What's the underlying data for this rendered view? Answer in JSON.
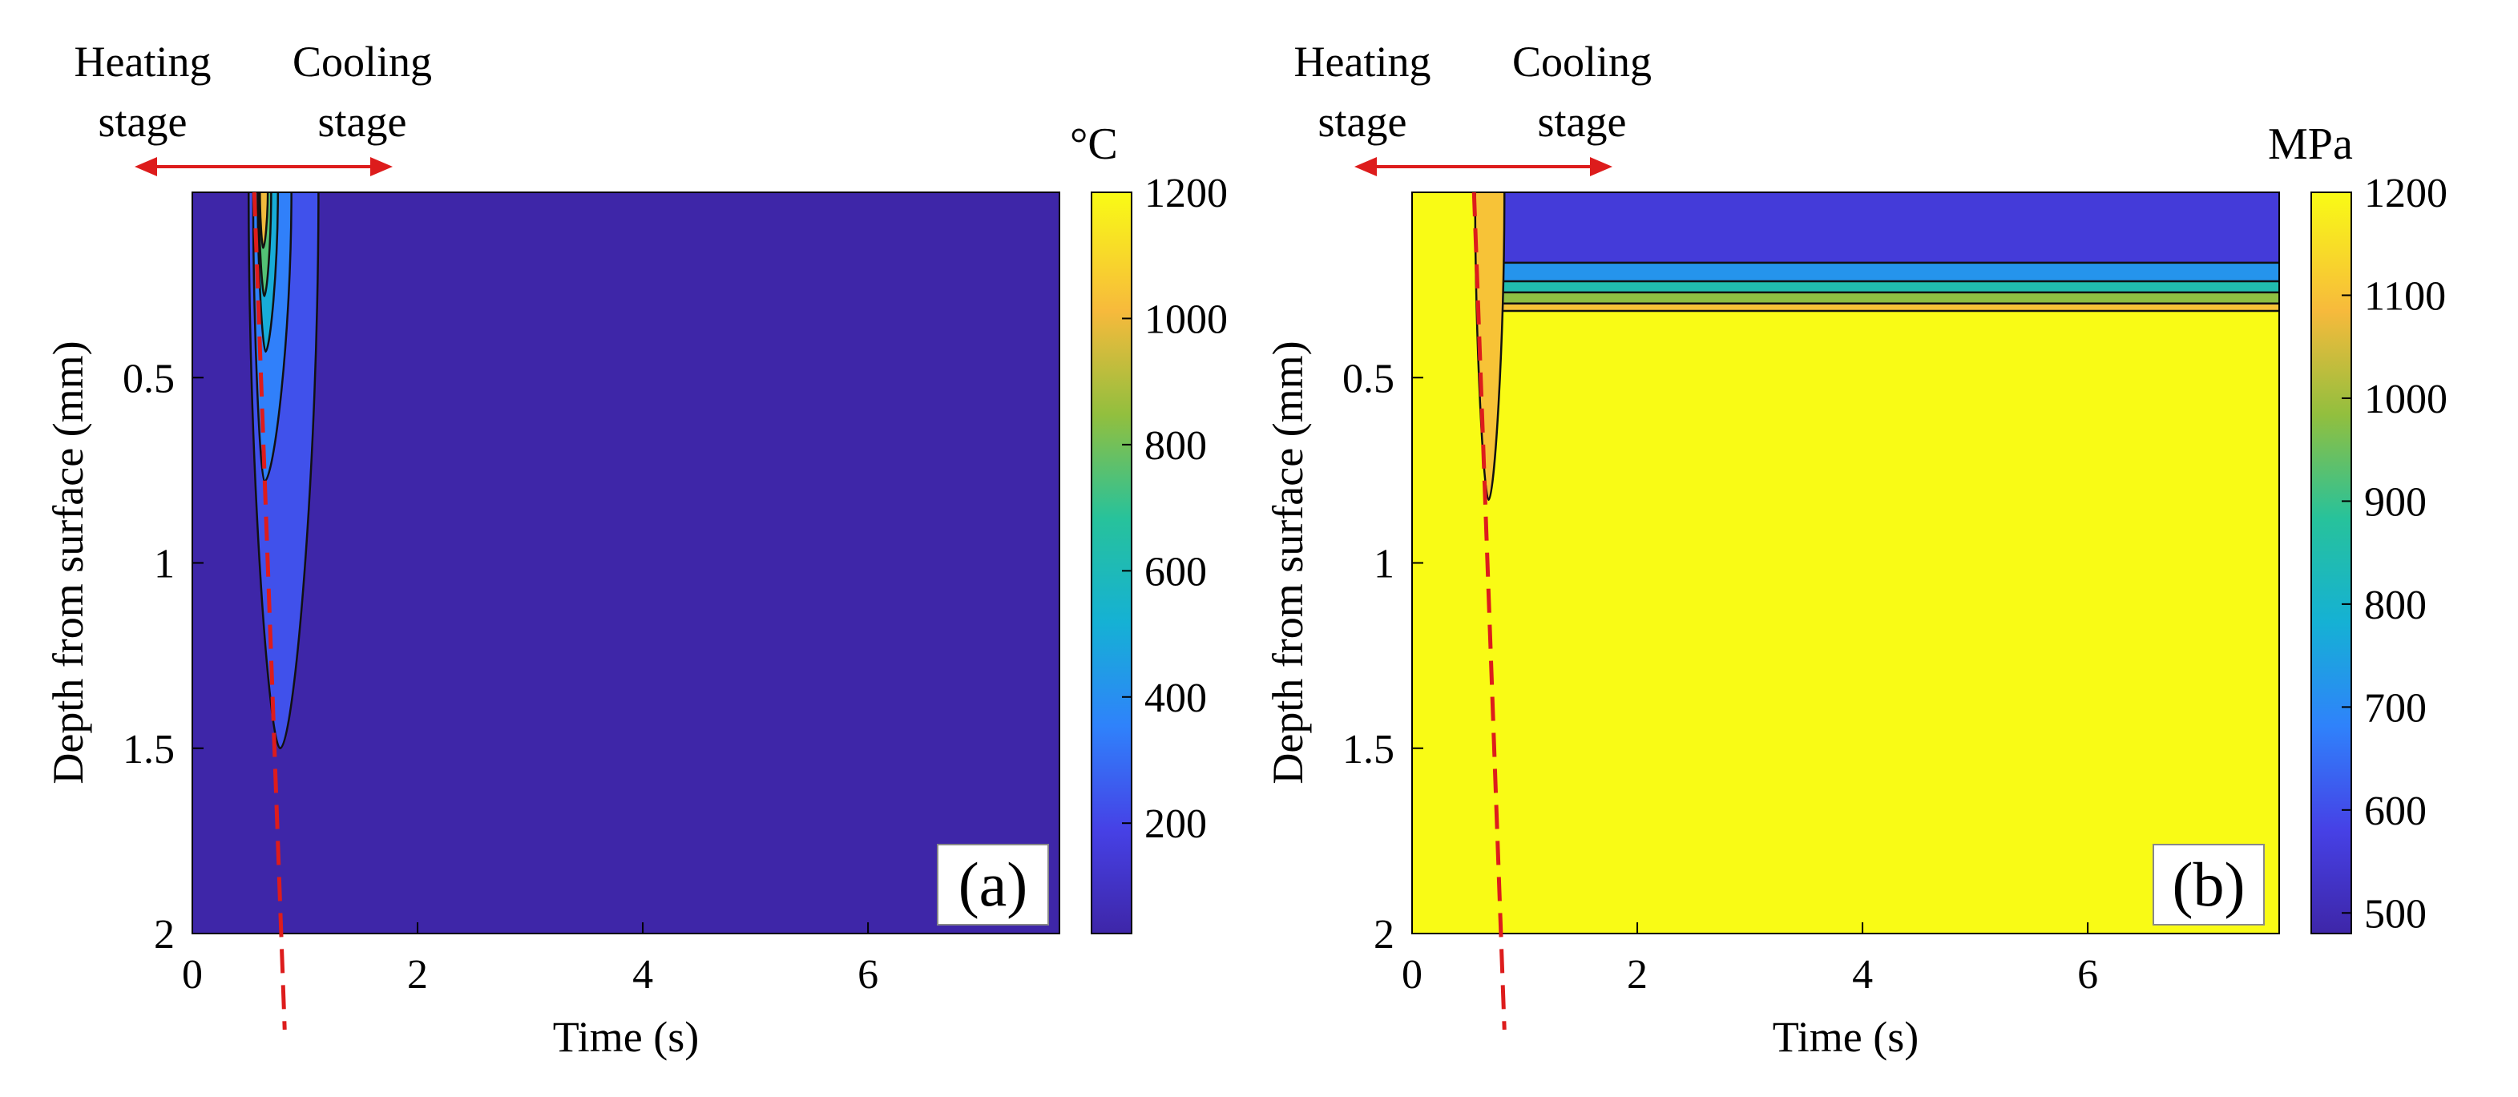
{
  "chart_data": [
    {
      "type": "contour",
      "panel_label": "(a)",
      "quantity": "temperature",
      "colorbar_unit": "°C",
      "xlabel": "Time (s)",
      "ylabel": "Depth from surface (mm)",
      "xlim": [
        0,
        7.7
      ],
      "ylim": [
        0,
        2
      ],
      "y_reversed": true,
      "xticks": [
        0,
        2,
        4,
        6
      ],
      "xtick_labels": [
        "0",
        "2",
        "4",
        "6"
      ],
      "yticks": [
        0.5,
        1,
        1.5,
        2
      ],
      "ytick_labels": [
        "0.5",
        "1",
        "1.5",
        "2"
      ],
      "colorbar_range": [
        25,
        1200
      ],
      "colorbar_ticks": [
        200,
        400,
        600,
        800,
        1000,
        1200
      ],
      "colorbar_tick_labels": [
        "200",
        "400",
        "600",
        "800",
        "1000",
        "1200"
      ],
      "background_level": 25,
      "contour_regions": [
        {
          "level": 230,
          "t_start": 0.5,
          "t_apex": 0.78,
          "t_end": 1.12,
          "depth": 1.5
        },
        {
          "level": 350,
          "t_start": 0.54,
          "t_apex": 0.64,
          "t_end": 0.88,
          "depth": 0.78
        },
        {
          "level": 500,
          "t_start": 0.58,
          "t_apex": 0.65,
          "t_end": 0.76,
          "depth": 0.43
        },
        {
          "level": 750,
          "t_start": 0.59,
          "t_apex": 0.64,
          "t_end": 0.7,
          "depth": 0.28
        },
        {
          "level": 1000,
          "t_start": 0.6,
          "t_apex": 0.63,
          "t_end": 0.67,
          "depth": 0.15
        }
      ],
      "stage_divider": {
        "t_top": 0.55,
        "t_bottom": 0.82
      },
      "annotations": {
        "heating_line1": "Heating",
        "heating_line2": "stage",
        "cooling_line1": "Cooling",
        "cooling_line2": "stage"
      }
    },
    {
      "type": "contour",
      "panel_label": "(b)",
      "quantity": "stress",
      "colorbar_unit": "MPa",
      "xlabel": "Time (s)",
      "ylabel": "Depth from surface (mm)",
      "xlim": [
        0,
        7.7
      ],
      "ylim": [
        0,
        2
      ],
      "y_reversed": true,
      "xticks": [
        0,
        2,
        4,
        6
      ],
      "xtick_labels": [
        "0",
        "2",
        "4",
        "6"
      ],
      "yticks": [
        0.5,
        1,
        1.5,
        2
      ],
      "ytick_labels": [
        "0.5",
        "1",
        "1.5",
        "2"
      ],
      "colorbar_range": [
        480,
        1200
      ],
      "colorbar_ticks": [
        500,
        600,
        700,
        800,
        900,
        1000,
        1100,
        1200
      ],
      "colorbar_tick_labels": [
        "500",
        "600",
        "700",
        "800",
        "900",
        "1000",
        "1100",
        "1200"
      ],
      "background_level": 1200,
      "surface_layer": {
        "level": 560,
        "boundary_depths": [
          0.19,
          0.24,
          0.27,
          0.3,
          0.32
        ],
        "band_levels": [
          720,
          850,
          980,
          1100
        ],
        "t_start": 0.73
      },
      "dip": {
        "level": 1100,
        "t_start": 0.56,
        "t_apex": 0.68,
        "t_end": 0.82,
        "depth": 0.83
      },
      "stage_divider": {
        "t_top": 0.55,
        "t_bottom": 0.82
      },
      "annotations": {
        "heating_line1": "Heating",
        "heating_line2": "stage",
        "cooling_line1": "Cooling",
        "cooling_line2": "stage"
      }
    }
  ],
  "colors": {
    "divider": "#dd1c1c",
    "contour_line": "#111111"
  }
}
